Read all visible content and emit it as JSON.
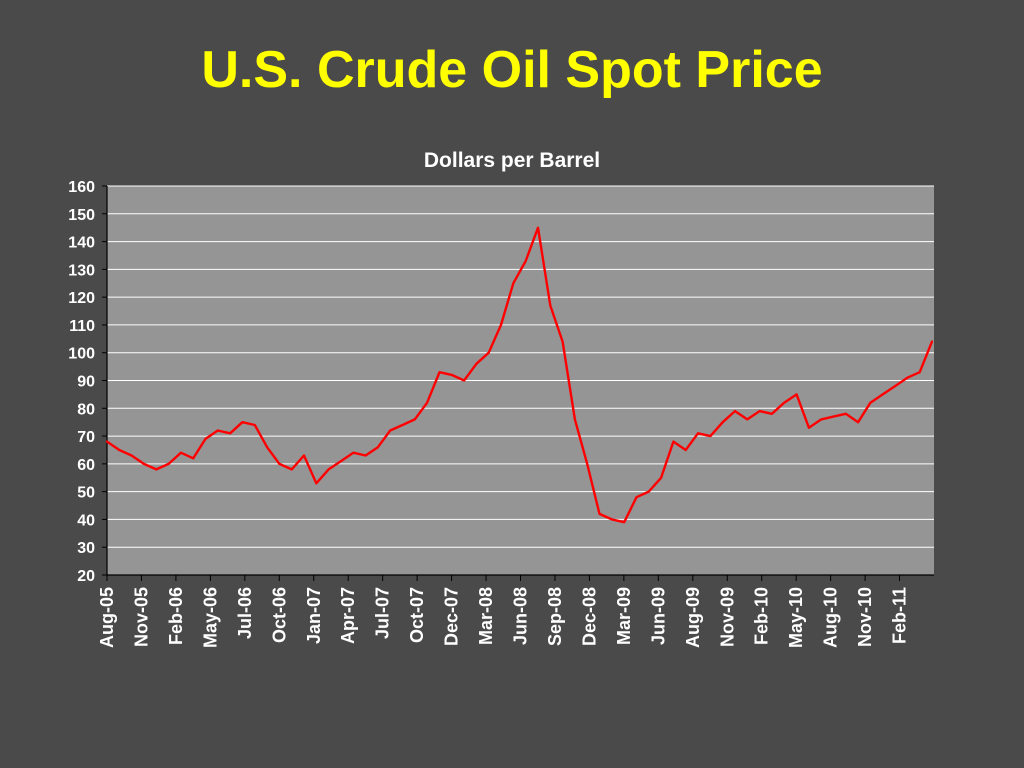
{
  "slide": {
    "title": "U.S. Crude Oil Spot Price"
  },
  "colors": {
    "background": "#4a4a4a",
    "plot_area": "#959595",
    "gridline": "#ffffff",
    "title": "#ffff00",
    "text": "#ffffff",
    "series_line": "#ff0000"
  },
  "chart_data": {
    "type": "line",
    "title": "Dollars per Barrel",
    "xlabel": "",
    "ylabel": "",
    "ylim": [
      20,
      160
    ],
    "yticks": [
      20,
      30,
      40,
      50,
      60,
      70,
      80,
      90,
      100,
      110,
      120,
      130,
      140,
      150,
      160
    ],
    "grid": true,
    "legend": "none",
    "x_tick_labels": [
      "Aug-05",
      "Nov-05",
      "Feb-06",
      "May-06",
      "Jul-06",
      "Oct-06",
      "Jan-07",
      "Apr-07",
      "Jul-07",
      "Oct-07",
      "Dec-07",
      "Mar-08",
      "Jun-08",
      "Sep-08",
      "Dec-08",
      "Mar-09",
      "Jun-09",
      "Aug-09",
      "Nov-09",
      "Feb-10",
      "May-10",
      "Aug-10",
      "Nov-10",
      "Feb-11"
    ],
    "series": [
      {
        "x": [
          "Aug-05",
          "Sep-05",
          "Oct-05",
          "Nov-05",
          "Dec-05",
          "Jan-06",
          "Feb-06",
          "Mar-06",
          "Apr-06",
          "May-06",
          "Jun-06",
          "Jul-06",
          "Aug-06",
          "Sep-06",
          "Oct-06",
          "Nov-06",
          "Dec-06",
          "Jan-07",
          "Feb-07",
          "Mar-07",
          "Apr-07",
          "May-07",
          "Jun-07",
          "Jul-07",
          "Aug-07",
          "Sep-07",
          "Oct-07",
          "Nov-07",
          "Dec-07",
          "Jan-08",
          "Feb-08",
          "Mar-08",
          "Apr-08",
          "May-08",
          "Jun-08",
          "Jul-08",
          "Aug-08",
          "Sep-08",
          "Oct-08",
          "Nov-08",
          "Dec-08",
          "Jan-09",
          "Feb-09",
          "Mar-09",
          "Apr-09",
          "May-09",
          "Jun-09",
          "Jul-09",
          "Aug-09",
          "Sep-09",
          "Oct-09",
          "Nov-09",
          "Dec-09",
          "Jan-10",
          "Feb-10",
          "Mar-10",
          "Apr-10",
          "May-10",
          "Jun-10",
          "Jul-10",
          "Aug-10",
          "Sep-10",
          "Oct-10",
          "Nov-10",
          "Dec-10",
          "Jan-11",
          "Feb-11",
          "Mar-11"
        ],
        "values": [
          68,
          65,
          63,
          60,
          58,
          60,
          64,
          62,
          69,
          72,
          71,
          75,
          74,
          66,
          60,
          58,
          63,
          53,
          58,
          61,
          64,
          63,
          66,
          72,
          74,
          76,
          82,
          93,
          92,
          90,
          96,
          100,
          110,
          125,
          133,
          145,
          117,
          104,
          76,
          60,
          42,
          40,
          39,
          48,
          50,
          55,
          68,
          65,
          71,
          70,
          75,
          79,
          76,
          79,
          78,
          82,
          85,
          73,
          76,
          77,
          78,
          75,
          82,
          85,
          88,
          91,
          93,
          104
        ]
      }
    ]
  }
}
